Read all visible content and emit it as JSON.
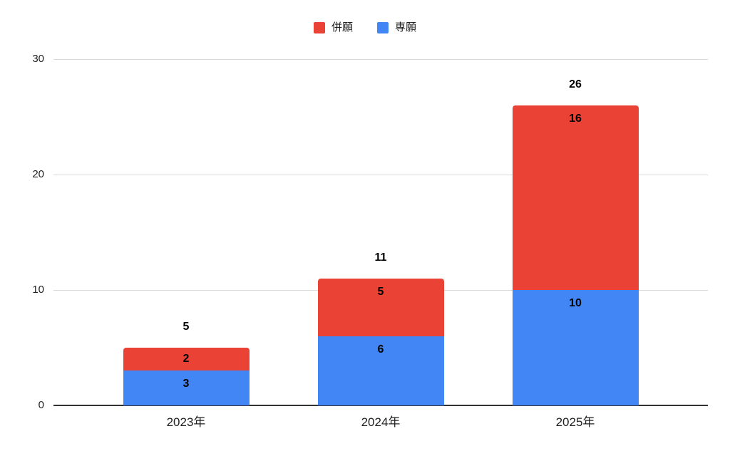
{
  "chart_data": {
    "type": "bar",
    "stacked": true,
    "title": "",
    "xlabel": "",
    "ylabel": "",
    "categories": [
      "2023年",
      "2024年",
      "2025年"
    ],
    "series": [
      {
        "name": "専願",
        "color": "#4285F4",
        "values": [
          3,
          6,
          10
        ]
      },
      {
        "name": "併願",
        "color": "#EA4335",
        "values": [
          2,
          5,
          16
        ]
      }
    ],
    "totals": [
      5,
      11,
      26
    ],
    "ylim": [
      0,
      30
    ],
    "yticks": [
      0,
      10,
      20,
      30
    ],
    "grid": true,
    "legend_position": "top",
    "background_color": "#ffffff",
    "gridline_color": "#d9d9d9",
    "axis_color": "#333333"
  },
  "legend": {
    "items": [
      {
        "label": "併願",
        "color": "#EA4335"
      },
      {
        "label": "専願",
        "color": "#4285F4"
      }
    ]
  }
}
